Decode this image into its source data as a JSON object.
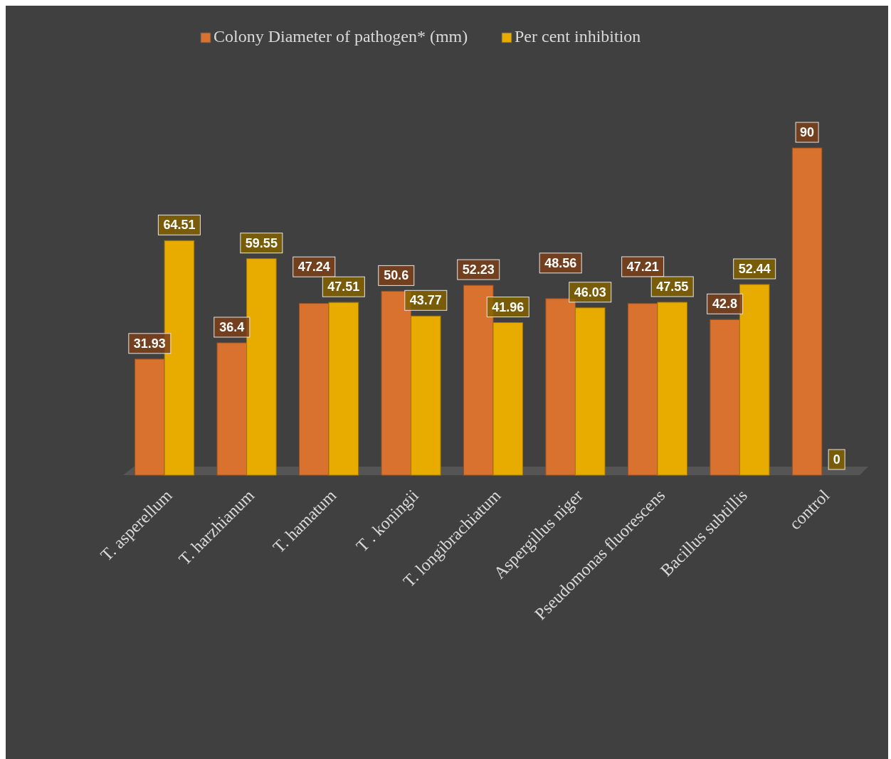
{
  "chart_data": {
    "type": "bar",
    "categories": [
      "T.  asperellum",
      "T. harzhianum",
      "T. hamatum",
      "T . koningii",
      "T. longibrachiatum",
      "Aspergillus niger",
      "Pseudomonas fluorescens",
      "Bacillus subtillis",
      "control"
    ],
    "series": [
      {
        "name": "Colony Diameter of pathogen* (mm)",
        "color": "#d9722e",
        "values": [
          31.93,
          36.4,
          47.24,
          50.6,
          52.23,
          48.56,
          47.21,
          42.8,
          90
        ]
      },
      {
        "name": "Per cent inhibition",
        "color": "#e8ab00",
        "values": [
          64.51,
          59.55,
          47.51,
          43.77,
          41.96,
          46.03,
          47.55,
          52.44,
          0
        ]
      }
    ],
    "data_labels": true,
    "legend": "top",
    "grid": false
  }
}
